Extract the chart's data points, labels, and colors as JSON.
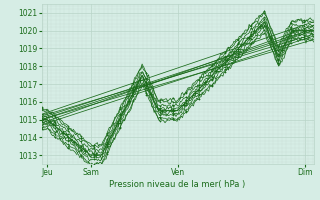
{
  "xlabel": "Pression niveau de la mer( hPa )",
  "xlim": [
    0,
    1
  ],
  "ylim": [
    1012.5,
    1021.5
  ],
  "yticks": [
    1013,
    1014,
    1015,
    1016,
    1017,
    1018,
    1019,
    1020,
    1021
  ],
  "xtick_labels": [
    "Jeu",
    "Sam",
    "Ven",
    "Dim"
  ],
  "xtick_positions": [
    0.02,
    0.18,
    0.5,
    0.97
  ],
  "bg_color": "#d6ede5",
  "grid_major_color": "#b8d4c8",
  "grid_minor_color": "#cce0d8",
  "line_color": "#1a6b1a",
  "line_width": 0.7
}
